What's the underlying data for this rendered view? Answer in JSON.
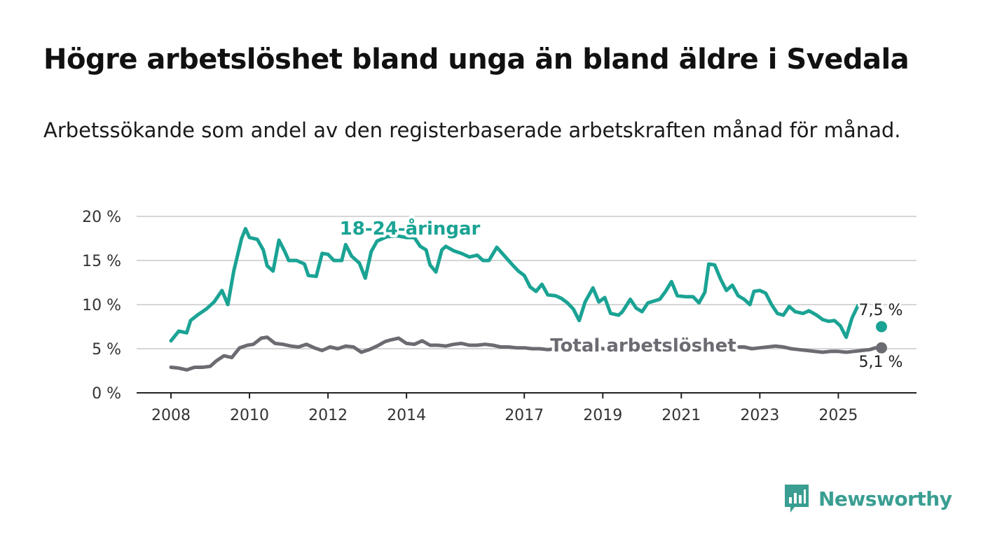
{
  "header": {
    "title": "Högre arbetslöshet bland unga än bland äldre i Svedala",
    "subtitle": "Arbetssökande som andel av den registerbaserade arbetskraften månad för månad."
  },
  "brand": {
    "name": "Newsworthy",
    "icon": "newsworthy-logo-icon",
    "color": "#3a9e92"
  },
  "chart_data": {
    "type": "line",
    "title": "Högre arbetslöshet bland unga än bland äldre i Svedala",
    "subtitle": "Arbetssökande som andel av den registerbaserade arbetskraften månad för månad.",
    "x_ticks": [
      "2008",
      "2010",
      "2012",
      "2014",
      "2017",
      "2019",
      "2021",
      "2023",
      "2025"
    ],
    "y_ticks": [
      "0 %",
      "5 %",
      "10 %",
      "15 %",
      "20 %"
    ],
    "xlim": [
      2008.0,
      2026.1
    ],
    "ylim": [
      0,
      20
    ],
    "grid": true,
    "series": [
      {
        "name": "18-24-åringar",
        "color": "#1aa394",
        "end_label": "7,5 %",
        "points": [
          [
            2008.0,
            5.9
          ],
          [
            2008.2,
            7.0
          ],
          [
            2008.4,
            6.8
          ],
          [
            2008.5,
            8.2
          ],
          [
            2008.7,
            8.9
          ],
          [
            2008.9,
            9.5
          ],
          [
            2009.1,
            10.3
          ],
          [
            2009.3,
            11.6
          ],
          [
            2009.45,
            10.0
          ],
          [
            2009.6,
            13.8
          ],
          [
            2009.8,
            17.5
          ],
          [
            2009.9,
            18.6
          ],
          [
            2010.0,
            17.6
          ],
          [
            2010.2,
            17.4
          ],
          [
            2010.35,
            16.2
          ],
          [
            2010.45,
            14.4
          ],
          [
            2010.6,
            13.8
          ],
          [
            2010.75,
            17.3
          ],
          [
            2010.9,
            16.0
          ],
          [
            2011.0,
            15.0
          ],
          [
            2011.2,
            15.0
          ],
          [
            2011.4,
            14.6
          ],
          [
            2011.5,
            13.3
          ],
          [
            2011.7,
            13.2
          ],
          [
            2011.85,
            15.8
          ],
          [
            2012.0,
            15.7
          ],
          [
            2012.15,
            15.0
          ],
          [
            2012.35,
            15.0
          ],
          [
            2012.45,
            16.8
          ],
          [
            2012.6,
            15.5
          ],
          [
            2012.8,
            14.7
          ],
          [
            2012.95,
            13.0
          ],
          [
            2013.1,
            16.0
          ],
          [
            2013.25,
            17.2
          ],
          [
            2013.5,
            17.7
          ],
          [
            2013.75,
            17.8
          ],
          [
            2014.0,
            17.6
          ],
          [
            2014.2,
            17.6
          ],
          [
            2014.35,
            16.6
          ],
          [
            2014.5,
            16.2
          ],
          [
            2014.6,
            14.5
          ],
          [
            2014.75,
            13.7
          ],
          [
            2014.9,
            16.2
          ],
          [
            2015.0,
            16.6
          ],
          [
            2015.2,
            16.1
          ],
          [
            2015.4,
            15.8
          ],
          [
            2015.6,
            15.4
          ],
          [
            2015.8,
            15.6
          ],
          [
            2015.95,
            15.0
          ],
          [
            2016.1,
            15.0
          ],
          [
            2016.3,
            16.5
          ],
          [
            2016.5,
            15.5
          ],
          [
            2016.7,
            14.5
          ],
          [
            2016.85,
            13.8
          ],
          [
            2017.0,
            13.3
          ],
          [
            2017.15,
            12.0
          ],
          [
            2017.3,
            11.5
          ],
          [
            2017.45,
            12.3
          ],
          [
            2017.6,
            11.1
          ],
          [
            2017.8,
            11.0
          ],
          [
            2017.95,
            10.7
          ],
          [
            2018.1,
            10.2
          ],
          [
            2018.25,
            9.5
          ],
          [
            2018.4,
            8.2
          ],
          [
            2018.55,
            10.3
          ],
          [
            2018.75,
            11.9
          ],
          [
            2018.9,
            10.3
          ],
          [
            2019.05,
            10.8
          ],
          [
            2019.2,
            9.0
          ],
          [
            2019.4,
            8.8
          ],
          [
            2019.5,
            9.2
          ],
          [
            2019.7,
            10.6
          ],
          [
            2019.85,
            9.6
          ],
          [
            2020.0,
            9.2
          ],
          [
            2020.15,
            10.2
          ],
          [
            2020.3,
            10.4
          ],
          [
            2020.45,
            10.6
          ],
          [
            2020.6,
            11.5
          ],
          [
            2020.75,
            12.6
          ],
          [
            2020.9,
            11.0
          ],
          [
            2021.1,
            10.9
          ],
          [
            2021.3,
            10.9
          ],
          [
            2021.45,
            10.2
          ],
          [
            2021.6,
            11.4
          ],
          [
            2021.7,
            14.6
          ],
          [
            2021.85,
            14.5
          ],
          [
            2022.0,
            12.9
          ],
          [
            2022.15,
            11.6
          ],
          [
            2022.3,
            12.2
          ],
          [
            2022.45,
            11.0
          ],
          [
            2022.6,
            10.6
          ],
          [
            2022.75,
            10.0
          ],
          [
            2022.85,
            11.5
          ],
          [
            2023.0,
            11.6
          ],
          [
            2023.15,
            11.3
          ],
          [
            2023.3,
            10.0
          ],
          [
            2023.45,
            9.0
          ],
          [
            2023.6,
            8.8
          ],
          [
            2023.75,
            9.8
          ],
          [
            2023.9,
            9.2
          ],
          [
            2024.1,
            9.0
          ],
          [
            2024.25,
            9.3
          ],
          [
            2024.45,
            8.8
          ],
          [
            2024.6,
            8.3
          ],
          [
            2024.75,
            8.1
          ],
          [
            2024.9,
            8.2
          ],
          [
            2025.05,
            7.6
          ],
          [
            2025.2,
            6.3
          ],
          [
            2025.35,
            8.5
          ],
          [
            2025.5,
            9.9
          ],
          [
            2025.6,
            10.0
          ],
          [
            2025.75,
            10.1
          ],
          [
            2026.1,
            7.5
          ]
        ]
      },
      {
        "name": "Total arbetslöshet",
        "color": "#6b6b72",
        "end_label": "5,1 %",
        "points": [
          [
            2008.0,
            2.9
          ],
          [
            2008.2,
            2.8
          ],
          [
            2008.4,
            2.6
          ],
          [
            2008.6,
            2.9
          ],
          [
            2008.8,
            2.9
          ],
          [
            2009.0,
            3.0
          ],
          [
            2009.15,
            3.6
          ],
          [
            2009.35,
            4.2
          ],
          [
            2009.55,
            4.0
          ],
          [
            2009.75,
            5.1
          ],
          [
            2009.95,
            5.4
          ],
          [
            2010.1,
            5.5
          ],
          [
            2010.3,
            6.2
          ],
          [
            2010.45,
            6.3
          ],
          [
            2010.65,
            5.6
          ],
          [
            2010.85,
            5.5
          ],
          [
            2011.05,
            5.3
          ],
          [
            2011.25,
            5.2
          ],
          [
            2011.45,
            5.5
          ],
          [
            2011.65,
            5.1
          ],
          [
            2011.85,
            4.8
          ],
          [
            2012.05,
            5.2
          ],
          [
            2012.25,
            5.0
          ],
          [
            2012.45,
            5.3
          ],
          [
            2012.65,
            5.2
          ],
          [
            2012.85,
            4.6
          ],
          [
            2013.05,
            4.9
          ],
          [
            2013.25,
            5.3
          ],
          [
            2013.45,
            5.8
          ],
          [
            2013.6,
            6.0
          ],
          [
            2013.8,
            6.2
          ],
          [
            2014.0,
            5.6
          ],
          [
            2014.2,
            5.5
          ],
          [
            2014.4,
            5.9
          ],
          [
            2014.6,
            5.4
          ],
          [
            2014.8,
            5.4
          ],
          [
            2015.0,
            5.3
          ],
          [
            2015.2,
            5.5
          ],
          [
            2015.4,
            5.6
          ],
          [
            2015.6,
            5.4
          ],
          [
            2015.8,
            5.4
          ],
          [
            2016.0,
            5.5
          ],
          [
            2016.2,
            5.4
          ],
          [
            2016.4,
            5.2
          ],
          [
            2016.6,
            5.2
          ],
          [
            2016.8,
            5.1
          ],
          [
            2017.0,
            5.1
          ],
          [
            2017.2,
            5.0
          ],
          [
            2017.4,
            5.0
          ],
          [
            2017.6,
            4.9
          ],
          [
            2017.8,
            5.0
          ],
          [
            2018.0,
            5.0
          ],
          [
            2018.2,
            5.0
          ],
          [
            2018.4,
            5.1
          ],
          [
            2018.6,
            5.2
          ],
          [
            2018.8,
            5.2
          ],
          [
            2019.0,
            5.0
          ],
          [
            2019.2,
            5.0
          ],
          [
            2019.4,
            5.2
          ],
          [
            2019.6,
            5.3
          ],
          [
            2019.8,
            5.3
          ],
          [
            2020.0,
            5.2
          ],
          [
            2020.2,
            5.1
          ],
          [
            2020.4,
            5.3
          ],
          [
            2020.6,
            5.3
          ],
          [
            2020.8,
            5.1
          ],
          [
            2021.0,
            5.2
          ],
          [
            2021.2,
            5.2
          ],
          [
            2021.4,
            5.3
          ],
          [
            2021.6,
            5.2
          ],
          [
            2021.8,
            5.0
          ],
          [
            2022.0,
            5.0
          ],
          [
            2022.2,
            5.1
          ],
          [
            2022.4,
            5.2
          ],
          [
            2022.6,
            5.2
          ],
          [
            2022.8,
            5.0
          ],
          [
            2023.0,
            5.1
          ],
          [
            2023.2,
            5.2
          ],
          [
            2023.4,
            5.3
          ],
          [
            2023.6,
            5.2
          ],
          [
            2023.8,
            5.0
          ],
          [
            2024.0,
            4.9
          ],
          [
            2024.2,
            4.8
          ],
          [
            2024.4,
            4.7
          ],
          [
            2024.6,
            4.6
          ],
          [
            2024.8,
            4.7
          ],
          [
            2025.0,
            4.7
          ],
          [
            2025.2,
            4.6
          ],
          [
            2025.4,
            4.7
          ],
          [
            2025.6,
            4.8
          ],
          [
            2025.8,
            4.9
          ],
          [
            2025.95,
            5.1
          ],
          [
            2026.1,
            5.1
          ]
        ]
      }
    ]
  }
}
